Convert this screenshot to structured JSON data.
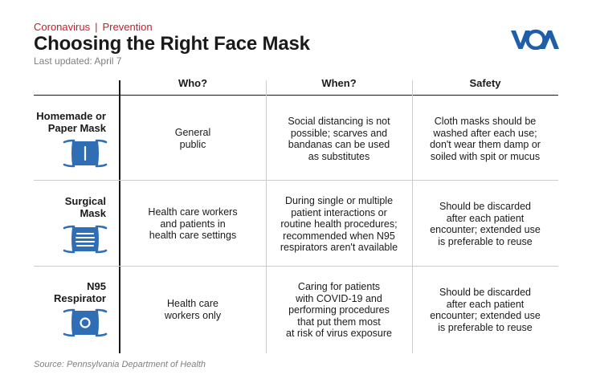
{
  "header": {
    "kicker_topic": "Coronavirus",
    "kicker_separator": "|",
    "kicker_section": "Prevention",
    "title": "Choosing the Right Face Mask",
    "updated": "Last updated: April 7"
  },
  "logo": {
    "text": "VOA",
    "color": "#1f5ea8"
  },
  "columns": [
    "Who?",
    "When?",
    "Safety"
  ],
  "rows": [
    {
      "label_lines": [
        "Homemade or",
        "Paper Mask"
      ],
      "icon": "homemade-mask-icon",
      "who": [
        "General",
        "public"
      ],
      "when": [
        "Social distancing is not",
        "possible; scarves and",
        "bandanas can be used",
        "as substitutes"
      ],
      "safety": [
        "Cloth masks should be",
        "washed after each use;",
        "don't wear them damp or",
        "soiled with spit or mucus"
      ]
    },
    {
      "label_lines": [
        "Surgical",
        "Mask"
      ],
      "icon": "surgical-mask-icon",
      "who": [
        "Health care workers",
        "and patients in",
        "health care settings"
      ],
      "when": [
        "During single or multiple",
        "patient interactions or",
        "routine health procedures;",
        "recommended when N95",
        "respirators aren't available"
      ],
      "safety": [
        "Should be discarded",
        "after each patient",
        "encounter; extended use",
        "is preferable to reuse"
      ]
    },
    {
      "label_lines": [
        "N95",
        "Respirator"
      ],
      "icon": "n95-respirator-icon",
      "who": [
        "Health care",
        "workers only"
      ],
      "when": [
        "Caring for patients",
        "with COVID-19 and",
        "performing procedures",
        "that put them most",
        "at risk of virus exposure"
      ],
      "safety": [
        "Should be discarded",
        "after each patient",
        "encounter; extended use",
        "is preferable to reuse"
      ]
    }
  ],
  "source": "Source: Pennsylvania Department of Health",
  "colors": {
    "accent_red": "#c41e2a",
    "mask_blue": "#2f6db5"
  }
}
